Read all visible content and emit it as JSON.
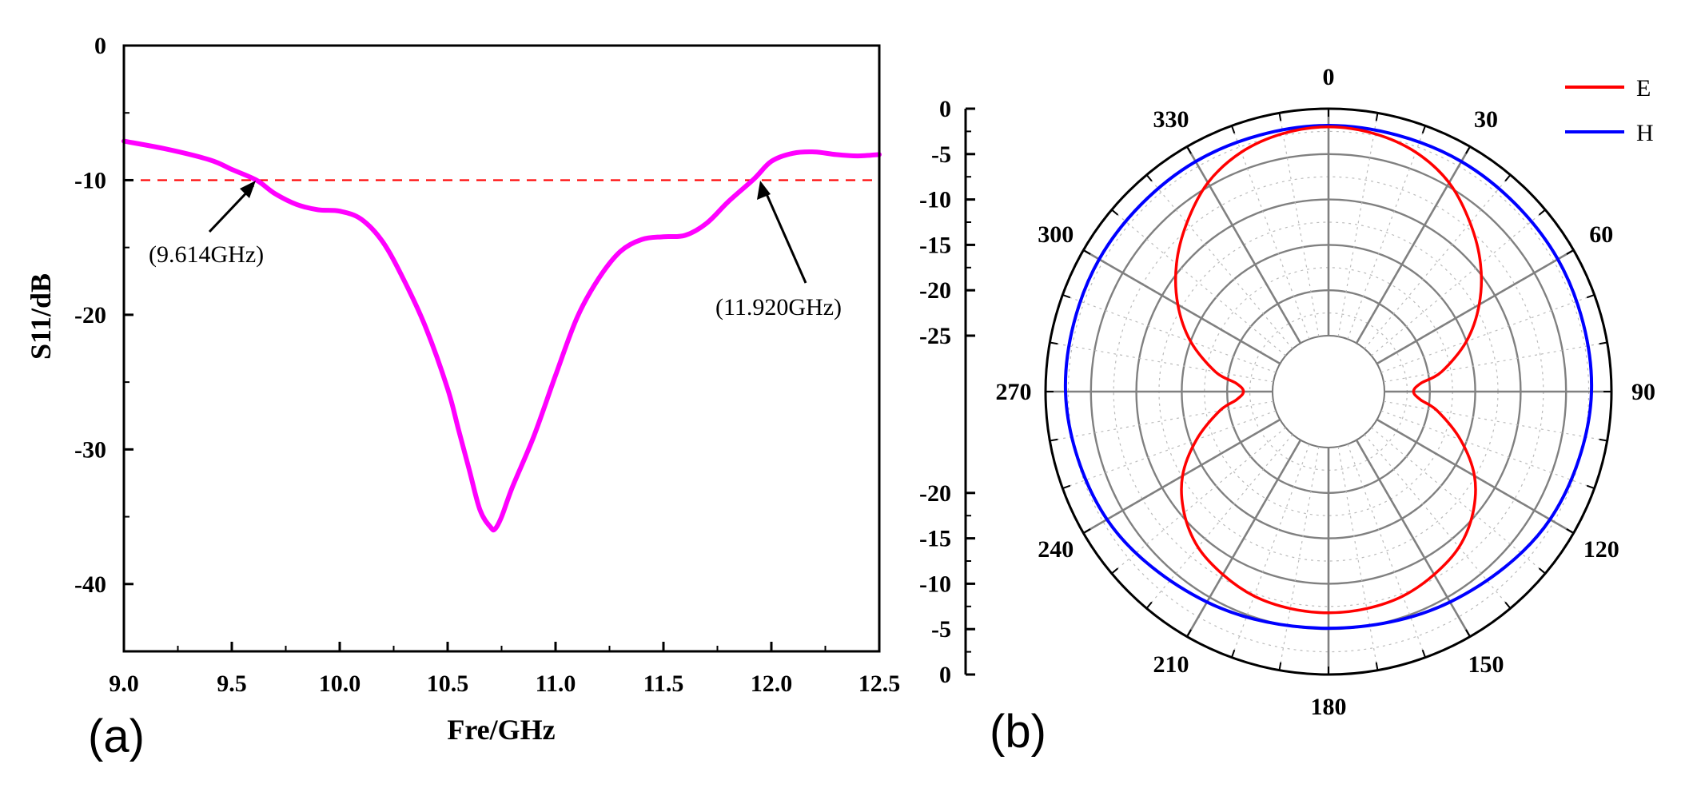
{
  "chart_data": [
    {
      "type": "line",
      "panel_label": "(a)",
      "title": "",
      "xlabel": "Fre/GHz",
      "ylabel": "S11/dB",
      "xlim": [
        9.0,
        12.5
      ],
      "ylim": [
        -45,
        0
      ],
      "xticks": [
        9.0,
        9.5,
        10.0,
        10.5,
        11.0,
        11.5,
        12.0,
        12.5
      ],
      "xtick_labels": [
        "9.0",
        "9.5",
        "10.0",
        "10.5",
        "11.0",
        "11.5",
        "12.0",
        "12.5"
      ],
      "yticks": [
        0,
        -10,
        -20,
        -30,
        -40
      ],
      "ytick_labels": [
        "0",
        "-10",
        "-20",
        "-30",
        "-40"
      ],
      "reference_line": {
        "y": -10,
        "color": "#ff0000",
        "style": "dashed"
      },
      "series": [
        {
          "name": "S11",
          "color": "#ff00ff",
          "x": [
            9.0,
            9.2,
            9.4,
            9.5,
            9.614,
            9.7,
            9.8,
            9.9,
            10.0,
            10.1,
            10.2,
            10.3,
            10.4,
            10.5,
            10.55,
            10.6,
            10.65,
            10.7,
            10.72,
            10.75,
            10.8,
            10.9,
            11.0,
            11.1,
            11.2,
            11.3,
            11.4,
            11.5,
            11.6,
            11.7,
            11.8,
            11.92,
            12.0,
            12.1,
            12.2,
            12.3,
            12.4,
            12.5
          ],
          "y": [
            -7.1,
            -7.7,
            -8.5,
            -9.2,
            -10.0,
            -11.0,
            -11.8,
            -12.2,
            -12.3,
            -12.9,
            -14.6,
            -17.5,
            -21.0,
            -25.5,
            -28.5,
            -31.5,
            -34.5,
            -35.8,
            -35.9,
            -35.0,
            -32.8,
            -29.0,
            -24.5,
            -20.2,
            -17.3,
            -15.3,
            -14.4,
            -14.2,
            -14.1,
            -13.2,
            -11.6,
            -9.9,
            -8.6,
            -8.0,
            -7.9,
            -8.1,
            -8.2,
            -8.1
          ]
        }
      ],
      "annotations": [
        {
          "text": "(9.614GHz)",
          "x": 9.614,
          "y": -10
        },
        {
          "text": "(11.920GHz)",
          "x": 11.92,
          "y": -10
        }
      ]
    },
    {
      "type": "polar",
      "panel_label": "(b)",
      "title": "",
      "radial_range": [
        -25,
        0
      ],
      "radial_ticks": [
        0,
        -5,
        -10,
        -15,
        -20,
        -25,
        -20,
        -15,
        -10,
        -5,
        0
      ],
      "radial_tick_labels": [
        "0",
        "-5",
        "-10",
        "-15",
        "-20",
        "-25",
        "-20",
        "-15",
        "-10",
        "-5",
        "0"
      ],
      "angle_ticks": [
        0,
        30,
        60,
        90,
        120,
        150,
        180,
        210,
        240,
        270,
        300,
        330
      ],
      "angle_tick_labels": [
        "0",
        "30",
        "60",
        "90",
        "120",
        "150",
        "180",
        "210",
        "240",
        "270",
        "300",
        "330"
      ],
      "legend": {
        "position": "top-right"
      },
      "series": [
        {
          "name": "E",
          "color": "#ff0000",
          "theta": [
            0,
            10,
            20,
            30,
            40,
            50,
            60,
            70,
            80,
            85,
            90,
            95,
            100,
            110,
            120,
            130,
            140,
            150,
            160,
            170,
            180
          ],
          "r": [
            -2.0,
            -2.3,
            -3.1,
            -4.6,
            -6.9,
            -9.3,
            -12.0,
            -15.0,
            -18.5,
            -21.0,
            -21.8,
            -21.0,
            -19.0,
            -15.7,
            -12.6,
            -10.4,
            -8.8,
            -7.9,
            -7.2,
            -6.9,
            -6.8
          ]
        },
        {
          "name": "H",
          "color": "#0000ff",
          "theta": [
            0,
            30,
            60,
            90,
            120,
            150,
            180
          ],
          "r": [
            -1.85,
            -1.9,
            -2.0,
            -2.2,
            -3.0,
            -4.4,
            -5.1
          ]
        }
      ]
    }
  ]
}
